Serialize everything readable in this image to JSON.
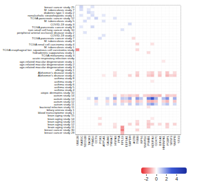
{
  "chart_data": {
    "type": "heatmap",
    "rows": [
      "breast cancer study 25",
      "M. tuberculosis study 7",
      "diabetes type 1 study 2",
      "nonalcoholic steatohepatitis study 1",
      "TCGA pancreatic cancer study 12",
      "M. tuberculosis study 5",
      "COVID-19 study 3",
      "TCGA pancreatic cancer study 9",
      "non small cell lung cancer study 10",
      "peripheral arterial occlusive disease study 2",
      "COVID-19 study 4",
      "TCGA pancreatic cancer study 7",
      "M. tuberculosis study 3",
      "TCGA renal cell carcinoma study 4",
      "M. tuberculosis study 1",
      "TCGA esophageal ker. squamous cell carcinoma study",
      "hidradenitis suppurativa study 1",
      "TCGA melanoma study 3",
      "acute respiratory infection study",
      "age-related macular degeneration study 1",
      "age-related macular degeneration study 2",
      "age-related macular degeneration study 3",
      "allergy study 1",
      "Alzheimer's disease study 5",
      "Alzheimer's disease study 4",
      "asthma study 8",
      "asthma study 7",
      "asthma study 6",
      "asthma study 5",
      "asthma study 4",
      "atopic dermatitis study 10",
      "autism study 14",
      "autism study 13",
      "autism study 12",
      "autism study 11",
      "bacterial infection study 11",
      "biliary atresia study 1",
      "blood transcriptome study 1",
      "brain aging study 15",
      "brain aging study 14",
      "brain aging study 13",
      "brain aging study 12",
      "brain aging study 11",
      "breast cancer study 30",
      "breast cancer study 29"
    ],
    "columns": [
      "UBE2B",
      "RAB5C",
      "SEC61B",
      "TAOK3",
      "PSMD4",
      "CCT3",
      "PGK1",
      "ATP5A1",
      "CALM2",
      "YWHAZ",
      "HSPA8",
      "PPIA",
      "RPL13",
      "EEF1A1",
      "GAPDH",
      "ACTB",
      "TUBB",
      "RPS6",
      "SNRPD2",
      "PSMB1",
      "NDUFA4",
      "COX7C",
      "EIF4A1",
      "HNRNPA1",
      "PCBP1",
      "SRSF3",
      "SNRPB",
      "STX3"
    ],
    "cells": [
      [
        0,
        0.8,
        0,
        0,
        0.5,
        0,
        0,
        0,
        0,
        0,
        0,
        0,
        0,
        0,
        0,
        0,
        0,
        0,
        0,
        0,
        0,
        0,
        0,
        0,
        0,
        0,
        0,
        0
      ],
      [
        0,
        0.6,
        0,
        0.4,
        0,
        0,
        0,
        0,
        0,
        0,
        0,
        0,
        0,
        0,
        0,
        0,
        0,
        0,
        0,
        0,
        0,
        0,
        0,
        0,
        0,
        0,
        0,
        0
      ],
      [
        0,
        0,
        0,
        0.7,
        0.4,
        0,
        0,
        0,
        0,
        0,
        0,
        0,
        0,
        0,
        0,
        0,
        0,
        0,
        0,
        0,
        0,
        0,
        0,
        0,
        0,
        0,
        0,
        0
      ],
      [
        0,
        0.5,
        0,
        0,
        0.6,
        0,
        0,
        0.4,
        0,
        0,
        0,
        0,
        0,
        0,
        0,
        0,
        0,
        0,
        0,
        0,
        0,
        0,
        0,
        0,
        0,
        0,
        0,
        0
      ],
      [
        0,
        0,
        0,
        0.5,
        0,
        0.8,
        0,
        0,
        0,
        0,
        0.5,
        0,
        0,
        0,
        0,
        0,
        0,
        0,
        0,
        0,
        0,
        0,
        0,
        0,
        0,
        0,
        0,
        0
      ],
      [
        0,
        0,
        0.6,
        0,
        0,
        0,
        0,
        0.5,
        0,
        0,
        0,
        0,
        0,
        0,
        0,
        0,
        0,
        0,
        0,
        0,
        0,
        0,
        0,
        0,
        0,
        0,
        0,
        0
      ],
      [
        0,
        0,
        0,
        0,
        0,
        0,
        0,
        0,
        0,
        0,
        0,
        0,
        0,
        0,
        0.6,
        0,
        0,
        0,
        0,
        0,
        0,
        0,
        0,
        0,
        0,
        0,
        0,
        0
      ],
      [
        0,
        0.4,
        0,
        0,
        0.7,
        0,
        0,
        0,
        0,
        0,
        0,
        0,
        0,
        0,
        0,
        0,
        0,
        0,
        0,
        0,
        0,
        0,
        0,
        0,
        0,
        0,
        0,
        0
      ],
      [
        0,
        0,
        0,
        0,
        0,
        0,
        0,
        0,
        0,
        0,
        0,
        0,
        0.5,
        0,
        0,
        0,
        0,
        0,
        0,
        0,
        0,
        0,
        0,
        0,
        0,
        0,
        0,
        0
      ],
      [
        0,
        0,
        0.5,
        0,
        0,
        0,
        0,
        0,
        0,
        0,
        0,
        0,
        0,
        0,
        0,
        0,
        0,
        0,
        0,
        0,
        0,
        0,
        0,
        0,
        0,
        0,
        0,
        0
      ],
      [
        0,
        0,
        0,
        0,
        0,
        0,
        0,
        0.5,
        0,
        0,
        0,
        0,
        0,
        0,
        0,
        0,
        0,
        0,
        0,
        0,
        0,
        0,
        0,
        0,
        0,
        0,
        0,
        0
      ],
      [
        0,
        0,
        0,
        0,
        0,
        0,
        0.6,
        0,
        0,
        0,
        0,
        0,
        0,
        0,
        0,
        -0.5,
        0,
        0,
        0,
        0,
        0,
        0,
        0,
        0,
        0,
        0,
        0,
        0
      ],
      [
        0,
        0,
        0,
        0,
        0,
        0,
        0,
        0,
        0,
        0,
        0,
        0,
        0,
        0,
        0,
        0,
        0,
        0,
        0,
        0,
        0,
        0,
        0,
        0,
        0,
        0,
        0,
        0
      ],
      [
        0,
        0,
        0,
        0,
        0,
        0,
        0,
        0,
        0,
        0,
        0,
        0,
        0,
        0,
        0,
        0,
        -0.6,
        0,
        0,
        0,
        -0.4,
        0,
        0,
        0,
        0,
        0,
        0,
        0
      ],
      [
        0,
        0,
        0,
        0,
        0,
        0,
        0,
        0,
        0,
        0,
        0,
        0,
        0,
        0,
        0,
        0,
        0,
        0,
        0,
        0,
        0,
        0,
        0,
        0,
        0,
        0,
        0,
        0
      ],
      [
        -1.5,
        0,
        0,
        0,
        0,
        0,
        0,
        0,
        0,
        0,
        0,
        0,
        0,
        0,
        0,
        0,
        -0.5,
        0,
        0,
        0,
        0,
        0,
        0,
        0,
        0,
        0,
        0,
        0
      ],
      [
        0,
        0,
        0,
        0,
        0,
        0,
        0,
        0,
        0,
        0,
        0,
        0,
        0,
        0,
        0,
        0,
        0,
        0,
        0,
        -0.5,
        0,
        0,
        0,
        0,
        0,
        0,
        0,
        0
      ],
      [
        0,
        0,
        0,
        0,
        0,
        0,
        0,
        0,
        0,
        0,
        0,
        0,
        0,
        0,
        0,
        0,
        0,
        0,
        0,
        0,
        0,
        0,
        0,
        0,
        0,
        0,
        0,
        0
      ],
      [
        0,
        0,
        0,
        0,
        0,
        0,
        0,
        0,
        0,
        0,
        0,
        0,
        0,
        0,
        0,
        0,
        0,
        0,
        0,
        0,
        0,
        0,
        0,
        0,
        0,
        0,
        0,
        0
      ],
      [
        0,
        0,
        0,
        0,
        0,
        0,
        0,
        0,
        0,
        0,
        0,
        0,
        0,
        0,
        0,
        0,
        0,
        0,
        0,
        0,
        0,
        0,
        0,
        -0.3,
        0,
        0,
        0,
        0
      ],
      [
        0,
        0,
        0,
        0,
        0,
        0,
        0,
        0,
        0,
        0,
        0,
        0,
        0,
        0,
        0,
        0,
        0,
        0,
        0,
        0,
        0,
        0,
        0,
        0,
        0,
        0,
        0,
        0
      ],
      [
        0,
        0,
        0,
        0,
        0,
        0,
        0,
        0,
        0,
        0,
        0,
        0,
        0,
        0,
        0,
        0,
        0,
        0,
        0,
        0,
        0,
        0,
        0,
        0,
        0,
        0,
        0,
        0
      ],
      [
        0,
        0,
        0,
        0,
        0,
        0,
        0,
        0,
        0,
        0,
        0,
        0,
        0,
        0,
        0,
        0,
        0,
        0,
        0,
        0,
        0,
        0,
        0,
        0,
        0,
        0,
        0,
        0
      ],
      [
        0,
        0,
        0,
        0,
        0,
        0,
        0,
        0,
        0,
        0,
        -0.4,
        0,
        0,
        0,
        0,
        0,
        -0.6,
        0,
        0,
        -0.5,
        -0.7,
        0,
        -0.6,
        0,
        -0.8,
        0,
        -0.5,
        0
      ],
      [
        0,
        0,
        0,
        0,
        0,
        0,
        0,
        -0.3,
        0,
        0,
        -0.5,
        0,
        0,
        0,
        -0.6,
        0,
        -0.8,
        0,
        0,
        -0.7,
        -0.9,
        0,
        -0.8,
        0,
        -1,
        -0.6,
        -0.7,
        0
      ],
      [
        0,
        0,
        0,
        0,
        0,
        0,
        0,
        0,
        0,
        0,
        0,
        0,
        0,
        0,
        0,
        0,
        0,
        0,
        0,
        0,
        0,
        0,
        0,
        0,
        0,
        0,
        0,
        0
      ],
      [
        0,
        0,
        0,
        0,
        0,
        0,
        0,
        0,
        0,
        0,
        0,
        0,
        0,
        0,
        0,
        0,
        0,
        0,
        0,
        0,
        -0.3,
        0,
        0,
        0,
        0,
        0,
        0,
        0
      ],
      [
        0,
        0,
        0,
        0,
        0,
        0,
        0,
        0,
        0,
        0,
        0,
        0,
        0,
        0,
        0,
        0,
        0,
        0,
        0,
        0,
        0,
        0,
        0,
        0,
        0,
        0,
        0,
        0
      ],
      [
        0,
        0,
        0,
        0,
        0,
        0,
        0,
        0,
        0,
        0,
        0,
        0,
        0,
        0,
        0,
        0,
        0,
        0,
        0,
        0,
        0,
        0,
        0,
        0,
        0,
        0,
        0,
        0
      ],
      [
        0,
        0,
        0,
        0,
        0,
        0,
        0,
        0,
        0,
        0,
        0,
        0,
        0,
        0,
        0,
        0,
        0,
        0,
        0,
        0,
        0,
        0,
        0,
        0,
        0,
        0,
        0,
        0
      ],
      [
        0,
        0,
        0,
        0,
        0,
        0,
        0,
        0,
        0,
        0,
        0,
        0,
        0,
        0,
        0,
        0,
        0,
        0,
        0,
        0,
        0,
        0,
        0,
        0,
        0,
        0,
        0,
        0
      ],
      [
        0,
        0,
        0,
        0,
        0,
        0,
        0,
        0,
        0,
        0,
        -0.5,
        0,
        -0.6,
        -0.4,
        -0.7,
        -0.5,
        -0.8,
        0,
        -0.6,
        -0.7,
        -0.9,
        -0.8,
        -1,
        0,
        -0.8,
        -0.6,
        -0.7,
        0
      ],
      [
        0,
        0,
        0,
        0.5,
        0,
        1.2,
        0,
        0,
        0.8,
        0,
        1.5,
        0,
        1,
        0.8,
        1.6,
        0,
        1.8,
        1,
        0,
        2.2,
        3.5,
        1.5,
        0,
        1.2,
        2,
        0,
        1.5,
        0
      ],
      [
        0,
        0,
        0,
        0,
        0,
        -0.4,
        0,
        0,
        -0.5,
        0,
        -0.6,
        0,
        -0.7,
        -0.5,
        -0.8,
        0,
        -0.9,
        -0.5,
        0,
        -1,
        -1.1,
        -0.8,
        0,
        -0.6,
        -1,
        0,
        -0.8,
        0
      ],
      [
        0,
        0,
        0,
        0,
        0,
        0.4,
        0,
        0,
        0.5,
        0,
        0.8,
        0,
        0.6,
        0,
        0.9,
        0,
        1,
        0.5,
        0,
        1.2,
        1.8,
        0.8,
        0,
        0.6,
        1.1,
        0,
        0.7,
        0
      ],
      [
        0,
        0,
        0,
        0,
        0,
        0,
        0,
        0,
        0,
        0,
        0,
        0,
        0,
        0,
        0,
        0,
        0,
        0,
        0,
        -0.4,
        0,
        0,
        0,
        0,
        0,
        0,
        0,
        0
      ],
      [
        0,
        0,
        0,
        0,
        0,
        0,
        0,
        0,
        0,
        0,
        0,
        0,
        0,
        0,
        0,
        0,
        0,
        0,
        0,
        0,
        0,
        0,
        0,
        0,
        0,
        0,
        0,
        0
      ],
      [
        0,
        0,
        0,
        0,
        0,
        0,
        0,
        0,
        0,
        0,
        0,
        0,
        0,
        0,
        0,
        0,
        0,
        0,
        0,
        0,
        0,
        0,
        0,
        0,
        0,
        0,
        0,
        0
      ],
      [
        0,
        0,
        0,
        0,
        0,
        0,
        0,
        0,
        0,
        0,
        0,
        0,
        0,
        0,
        0,
        0,
        0,
        0,
        0,
        0,
        0,
        0,
        0,
        0,
        0,
        0,
        0,
        0
      ],
      [
        0,
        0,
        0,
        0,
        0,
        0,
        -0.4,
        0,
        0,
        0,
        0,
        0,
        0,
        0,
        0,
        0,
        0,
        0,
        0,
        0,
        -0.3,
        0,
        0,
        0,
        0,
        0,
        0,
        0
      ],
      [
        0,
        0,
        0,
        0,
        0,
        0,
        0,
        0,
        0,
        0,
        0,
        0,
        0,
        0,
        0,
        0,
        -0.5,
        0,
        0,
        -0.6,
        0,
        0,
        0,
        0,
        0,
        0,
        0,
        0
      ],
      [
        0,
        0,
        0,
        0,
        0,
        0,
        -0.5,
        0,
        0,
        0,
        -0.4,
        0,
        0,
        0,
        -0.6,
        0,
        -0.7,
        0,
        0,
        -0.8,
        -0.6,
        0,
        -0.5,
        0,
        -0.7,
        0,
        -0.6,
        0
      ],
      [
        0,
        0,
        0,
        0,
        0,
        0,
        0,
        0,
        0,
        0,
        -0.5,
        0,
        -1.5,
        0,
        0,
        0,
        0,
        0,
        0,
        -0.7,
        0,
        0,
        0,
        0,
        -0.6,
        0,
        0,
        0
      ],
      [
        0,
        0,
        0,
        0,
        0,
        0,
        0,
        0,
        0,
        0,
        0,
        0,
        -1.8,
        0,
        0,
        0,
        -0.6,
        0,
        0,
        0,
        0,
        0,
        0,
        0,
        0,
        0,
        0,
        0
      ],
      [
        0,
        0,
        0,
        0,
        0,
        0,
        0,
        0,
        0,
        0,
        0,
        0,
        -1,
        0,
        0,
        0,
        0,
        0,
        0,
        0,
        0,
        0,
        0,
        0,
        0,
        0,
        0,
        0
      ]
    ],
    "colorbar": {
      "range": [
        -3,
        6
      ],
      "ticks": [
        -2,
        0,
        2,
        4
      ],
      "colors": [
        "#e8262b",
        "#ffffff",
        "#3d5ad6",
        "#1a2c9e"
      ]
    }
  }
}
